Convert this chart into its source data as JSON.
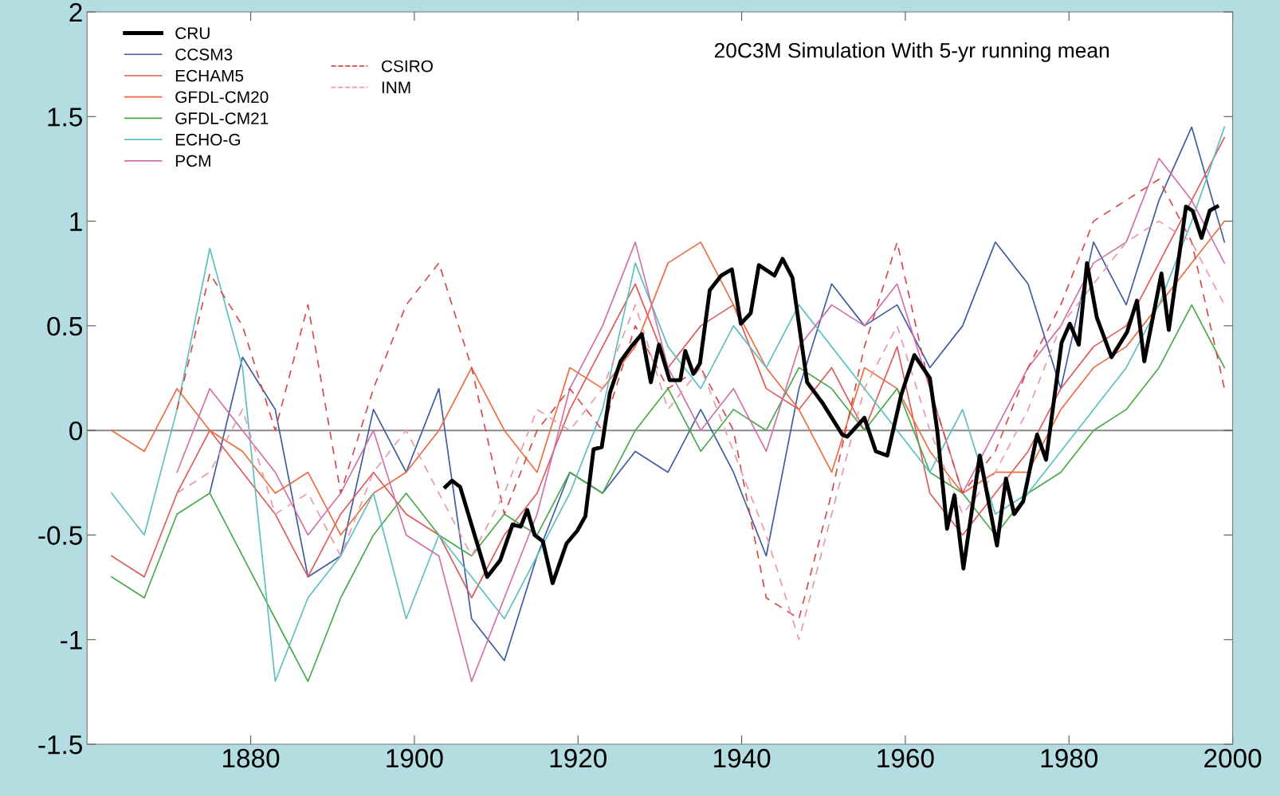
{
  "chart_data": {
    "type": "line",
    "title": "20C3M Simulation With 5-yr running mean",
    "x": [
      1863,
      1867,
      1871,
      1875,
      1879,
      1883,
      1887,
      1891,
      1895,
      1899,
      1903,
      1907,
      1911,
      1915,
      1919,
      1923,
      1927,
      1931,
      1935,
      1939,
      1943,
      1947,
      1951,
      1955,
      1959,
      1963,
      1967,
      1971,
      1975,
      1979,
      1983,
      1987,
      1991,
      1995,
      1999
    ],
    "xlim": [
      1860,
      2000
    ],
    "xticks": [
      1880,
      1900,
      1920,
      1940,
      1960,
      1980,
      2000
    ],
    "ylim": [
      -1.5,
      2
    ],
    "yticks": [
      -1.5,
      -1,
      -0.5,
      0,
      0.5,
      1,
      1.5,
      2
    ],
    "grid": false,
    "legend": "top left",
    "marker": "none",
    "ref_lines": [
      {
        "axis": "y",
        "value": 0,
        "color": "#8a8a8a"
      }
    ],
    "series": [
      {
        "name": "CRU",
        "color": "#000000",
        "line_style": "solid",
        "x": [
          1903.8,
          1904.6,
          1905.6,
          1908.9,
          1910.5,
          1912.0,
          1913.0,
          1913.8,
          1914.7,
          1915.7,
          1916.9,
          1918.6,
          1919.9,
          1920.9,
          1921.9,
          1922.9,
          1923.9,
          1925.2,
          1926.5,
          1927.8,
          1928.9,
          1929.9,
          1931.2,
          1932.5,
          1933.1,
          1934.1,
          1934.9,
          1936.1,
          1937.5,
          1938.8,
          1939.9,
          1941.1,
          1942.1,
          1944.0,
          1945.0,
          1946.2,
          1948.0,
          1949.9,
          1952.3,
          1952.9,
          1955.0,
          1956.4,
          1957.8,
          1959.5,
          1961.1,
          1963.0,
          1963.9,
          1965.1,
          1966.0,
          1967.1,
          1969.1,
          1971.2,
          1972.3,
          1973.3,
          1974.4,
          1976.1,
          1977.2,
          1979.1,
          1980.1,
          1981.2,
          1982.2,
          1983.4,
          1985.2,
          1987.1,
          1988.3,
          1989.2,
          1991.3,
          1992.2,
          1994.3,
          1995.1,
          1996.2,
          1997.2,
          1998.1
        ],
        "values": [
          -0.27,
          -0.24,
          -0.27,
          -0.7,
          -0.62,
          -0.45,
          -0.46,
          -0.38,
          -0.5,
          -0.53,
          -0.73,
          -0.54,
          -0.48,
          -0.41,
          -0.09,
          -0.08,
          0.18,
          0.33,
          0.4,
          0.46,
          0.23,
          0.41,
          0.24,
          0.24,
          0.38,
          0.27,
          0.32,
          0.67,
          0.74,
          0.77,
          0.51,
          0.56,
          0.79,
          0.74,
          0.82,
          0.73,
          0.23,
          0.13,
          -0.02,
          -0.03,
          0.06,
          -0.1,
          -0.12,
          0.17,
          0.36,
          0.25,
          0.0,
          -0.47,
          -0.31,
          -0.66,
          -0.12,
          -0.55,
          -0.23,
          -0.4,
          -0.34,
          -0.02,
          -0.14,
          0.42,
          0.51,
          0.41,
          0.8,
          0.54,
          0.35,
          0.47,
          0.62,
          0.33,
          0.75,
          0.48,
          1.07,
          1.05,
          0.92,
          1.05,
          1.07
        ]
      },
      {
        "name": "CCSM3",
        "color": "#3f5a9e",
        "line_style": "solid",
        "values": [
          null,
          null,
          null,
          -0.3,
          0.35,
          0.1,
          -0.7,
          -0.6,
          0.1,
          -0.2,
          0.2,
          -0.9,
          -1.1,
          -0.6,
          -0.2,
          -0.3,
          -0.1,
          -0.2,
          0.1,
          -0.2,
          -0.6,
          0.2,
          0.7,
          0.5,
          0.6,
          0.3,
          0.5,
          0.9,
          0.7,
          0.2,
          0.9,
          0.6,
          1.1,
          1.45,
          0.9
        ]
      },
      {
        "name": "ECHAM5",
        "color": "#e05a5a",
        "line_style": "solid",
        "values": [
          -0.6,
          -0.7,
          -0.3,
          0.0,
          -0.2,
          -0.4,
          -0.7,
          -0.4,
          -0.2,
          -0.4,
          -0.5,
          -0.8,
          -0.5,
          -0.3,
          0.1,
          0.4,
          0.7,
          0.3,
          0.5,
          0.6,
          0.2,
          0.1,
          0.3,
          0.0,
          0.4,
          -0.3,
          -0.5,
          -0.3,
          -0.1,
          0.2,
          0.4,
          0.5,
          0.8,
          1.1,
          1.4
        ]
      },
      {
        "name": "GFDL-CM20",
        "color": "#f06a40",
        "line_style": "solid",
        "values": [
          0.0,
          -0.1,
          0.2,
          0.0,
          -0.1,
          -0.3,
          -0.2,
          -0.5,
          -0.3,
          -0.2,
          0.0,
          0.3,
          0.0,
          -0.2,
          0.3,
          0.2,
          0.4,
          0.8,
          0.9,
          0.6,
          0.3,
          0.1,
          -0.2,
          0.3,
          0.2,
          -0.1,
          -0.3,
          -0.2,
          -0.2,
          0.1,
          0.3,
          0.4,
          0.6,
          0.8,
          1.0
        ]
      },
      {
        "name": "GFDL-CM21",
        "color": "#4aa84a",
        "line_style": "solid",
        "values": [
          -0.7,
          -0.8,
          -0.4,
          -0.3,
          -0.6,
          -0.9,
          -1.2,
          -0.8,
          -0.5,
          -0.3,
          -0.5,
          -0.6,
          -0.4,
          -0.5,
          -0.2,
          -0.3,
          0.0,
          0.2,
          -0.1,
          0.1,
          0.0,
          0.3,
          0.2,
          0.0,
          0.2,
          -0.2,
          -0.3,
          -0.5,
          -0.3,
          -0.2,
          0.0,
          0.1,
          0.3,
          0.6,
          0.3
        ]
      },
      {
        "name": "ECHO-G",
        "color": "#5cbfc0",
        "line_style": "solid",
        "values": [
          -0.3,
          -0.5,
          0.1,
          0.87,
          0.3,
          -1.2,
          -0.8,
          -0.6,
          -0.3,
          -0.9,
          -0.5,
          -0.7,
          -0.9,
          -0.6,
          -0.3,
          0.1,
          0.8,
          0.4,
          0.2,
          0.5,
          0.3,
          0.6,
          0.4,
          0.2,
          0.0,
          -0.2,
          0.1,
          -0.4,
          -0.3,
          -0.1,
          0.1,
          0.3,
          0.6,
          1.0,
          1.45
        ]
      },
      {
        "name": "PCM",
        "color": "#d070a8",
        "line_style": "solid",
        "values": [
          null,
          null,
          -0.2,
          0.2,
          0.0,
          -0.2,
          -0.5,
          -0.3,
          0.0,
          -0.5,
          -0.6,
          -1.2,
          -0.8,
          -0.4,
          0.2,
          0.5,
          0.9,
          0.3,
          0.0,
          0.2,
          -0.1,
          0.4,
          0.6,
          0.5,
          0.7,
          0.2,
          -0.3,
          0.0,
          0.3,
          0.5,
          0.8,
          0.9,
          1.3,
          1.1,
          0.8
        ]
      },
      {
        "name": "CSIRO",
        "color": "#d84848",
        "line_style": "dashed",
        "values": [
          null,
          null,
          0.1,
          0.75,
          0.5,
          0.0,
          0.6,
          -0.3,
          0.2,
          0.6,
          0.8,
          0.3,
          -0.4,
          0.0,
          0.2,
          0.0,
          0.5,
          0.2,
          0.3,
          0.0,
          -0.8,
          -0.9,
          -0.3,
          0.4,
          0.9,
          0.2,
          -0.3,
          -0.1,
          0.3,
          0.6,
          1.0,
          1.1,
          1.2,
          0.9,
          0.2
        ]
      },
      {
        "name": "INM",
        "color": "#e898a8",
        "line_style": "dashed",
        "values": [
          null,
          null,
          -0.3,
          -0.2,
          0.1,
          -0.4,
          -0.3,
          -0.6,
          -0.2,
          0.0,
          -0.3,
          -0.6,
          -0.3,
          0.1,
          0.0,
          0.2,
          0.6,
          0.1,
          0.3,
          -0.1,
          -0.5,
          -1.0,
          -0.4,
          0.2,
          0.5,
          0.0,
          -0.4,
          -0.2,
          0.1,
          0.5,
          0.7,
          0.9,
          1.0,
          0.9,
          0.6
        ]
      }
    ]
  }
}
